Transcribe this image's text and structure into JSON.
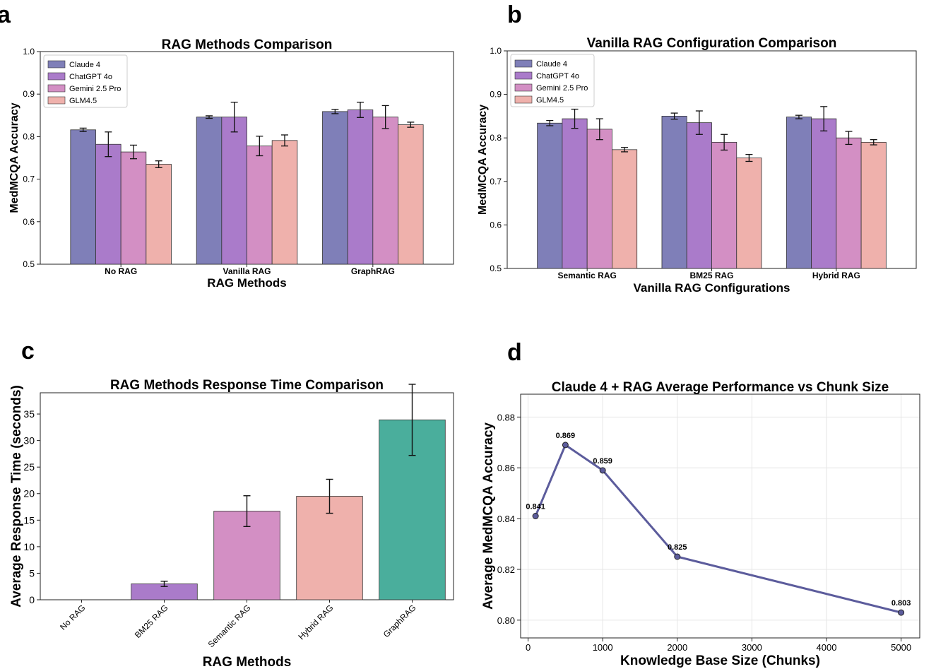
{
  "chart_data": [
    {
      "panel_label": "a",
      "type": "bar",
      "title": "RAG Methods Comparison",
      "xlabel": "RAG Methods",
      "ylabel": "MedMCQA Accuracy",
      "ylim": [
        0.5,
        1.0
      ],
      "yticks": [
        "0.5",
        "0.6",
        "0.7",
        "0.8",
        "0.9",
        "1.0"
      ],
      "categories": [
        "No RAG",
        "Vanilla RAG",
        "GraphRAG"
      ],
      "legend_position": "top-left",
      "series": [
        {
          "name": "Claude 4",
          "color": "#7f7fb8",
          "values": [
            0.816,
            0.846,
            0.859
          ],
          "errors": [
            0.004,
            0.003,
            0.005
          ]
        },
        {
          "name": "ChatGPT 4o",
          "color": "#aa7bca",
          "values": [
            0.782,
            0.846,
            0.863
          ],
          "errors": [
            0.029,
            0.035,
            0.018
          ]
        },
        {
          "name": "Gemini 2.5 Pro",
          "color": "#d38fc4",
          "values": [
            0.764,
            0.778,
            0.846
          ],
          "errors": [
            0.016,
            0.023,
            0.027
          ]
        },
        {
          "name": "GLM4.5",
          "color": "#efb1ac",
          "values": [
            0.735,
            0.791,
            0.828
          ],
          "errors": [
            0.008,
            0.013,
            0.006
          ]
        }
      ]
    },
    {
      "panel_label": "b",
      "type": "bar",
      "title": "Vanilla RAG Configuration Comparison",
      "xlabel": "Vanilla RAG Configurations",
      "ylabel": "MedMCQA Accuracy",
      "ylim": [
        0.5,
        1.0
      ],
      "yticks": [
        "0.5",
        "0.6",
        "0.7",
        "0.8",
        "0.9",
        "1.0"
      ],
      "categories": [
        "Semantic RAG",
        "BM25 RAG",
        "Hybrid RAG"
      ],
      "legend_position": "top-left",
      "series": [
        {
          "name": "Claude 4",
          "color": "#7f7fb8",
          "values": [
            0.834,
            0.85,
            0.848
          ],
          "errors": [
            0.006,
            0.007,
            0.004
          ]
        },
        {
          "name": "ChatGPT 4o",
          "color": "#aa7bca",
          "values": [
            0.844,
            0.835,
            0.844
          ],
          "errors": [
            0.022,
            0.027,
            0.028
          ]
        },
        {
          "name": "Gemini 2.5 Pro",
          "color": "#d38fc4",
          "values": [
            0.82,
            0.79,
            0.8
          ],
          "errors": [
            0.024,
            0.018,
            0.015
          ]
        },
        {
          "name": "GLM4.5",
          "color": "#efb1ac",
          "values": [
            0.773,
            0.754,
            0.79
          ],
          "errors": [
            0.005,
            0.008,
            0.006
          ]
        }
      ]
    },
    {
      "panel_label": "c",
      "type": "bar",
      "title": "RAG Methods Response Time Comparison",
      "xlabel": "RAG Methods",
      "ylabel": "Average Response Time (seconds)",
      "ylim": [
        0,
        39
      ],
      "yticks": [
        "0",
        "5",
        "10",
        "15",
        "20",
        "25",
        "30",
        "35"
      ],
      "categories": [
        "No RAG",
        "BM25 RAG",
        "Semantic RAG",
        "Hybrid RAG",
        "GraphRAG"
      ],
      "colors": [
        "#7f7fb8",
        "#aa7bca",
        "#d38fc4",
        "#efb1ac",
        "#4aae9c"
      ],
      "values": [
        0.0,
        3.0,
        16.7,
        19.5,
        33.9
      ],
      "errors": [
        0.0,
        0.5,
        2.9,
        3.2,
        6.7
      ]
    },
    {
      "panel_label": "d",
      "type": "line",
      "title": "Claude 4 + RAG Average Performance vs Chunk Size",
      "xlabel": "Knowledge Base Size (Chunks)",
      "ylabel": "Average MedMCQA Accuracy",
      "xlim": [
        -100,
        5250
      ],
      "ylim": [
        0.793,
        0.889
      ],
      "xticks": [
        "0",
        "1000",
        "2000",
        "3000",
        "4000",
        "5000"
      ],
      "yticks": [
        "0.80",
        "0.82",
        "0.84",
        "0.86",
        "0.88"
      ],
      "grid": true,
      "color": "#5c5c9c",
      "x": [
        100,
        500,
        1000,
        2000,
        5000
      ],
      "y": [
        0.841,
        0.869,
        0.859,
        0.825,
        0.803
      ],
      "labels": [
        "0.841",
        "0.869",
        "0.859",
        "0.825",
        "0.803"
      ]
    }
  ]
}
